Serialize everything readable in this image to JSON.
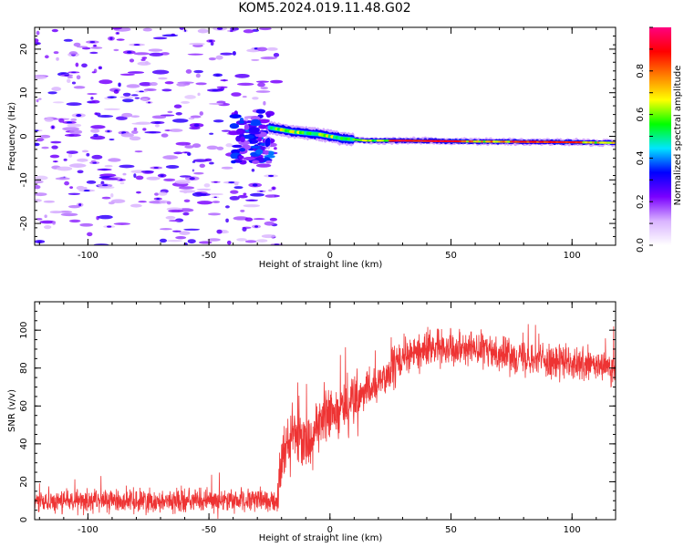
{
  "title": "KOM5.2024.019.11.48.G02",
  "chart_data": [
    {
      "type": "heatmap",
      "xlabel": "Height of straight line (km)",
      "ylabel": "Frequency (Hz)",
      "xlim": [
        -122,
        118
      ],
      "ylim": [
        -25,
        25
      ],
      "x_ticks": [
        -100,
        -50,
        0,
        50,
        100
      ],
      "y_ticks": [
        -20,
        -10,
        0,
        10,
        20
      ],
      "grid": false,
      "colorbar": {
        "label": "Normalized spectral amplitude",
        "range": [
          0,
          1
        ],
        "ticks": [
          0.0,
          0.2,
          0.4,
          0.6,
          0.8
        ],
        "colormap": [
          "#ffffff",
          "#d9b3ff",
          "#7a00ff",
          "#0000ff",
          "#00e5ff",
          "#00ff00",
          "#ffff00",
          "#ff8000",
          "#ff0000",
          "#ff0080"
        ]
      },
      "trace": {
        "description_points_x": [
          -25,
          -15,
          -5,
          5,
          15,
          30,
          60,
          90,
          118
        ],
        "description_points_freq": [
          2,
          1,
          0.5,
          -0.5,
          -1,
          -1,
          -1.2,
          -1.3,
          -1.5
        ]
      }
    },
    {
      "type": "line",
      "xlabel": "Height of straight line (km)",
      "ylabel": "SNR (v/v)",
      "xlim": [
        -122,
        118
      ],
      "ylim": [
        0,
        115
      ],
      "x_ticks": [
        -100,
        -50,
        0,
        50,
        100
      ],
      "y_ticks": [
        0,
        20,
        40,
        60,
        80,
        100
      ],
      "grid": false,
      "series": [
        {
          "color": "#ee3333",
          "envelope_x": [
            -122,
            -100,
            -50,
            -22,
            -20,
            -15,
            -10,
            -5,
            0,
            5,
            10,
            20,
            30,
            40,
            50,
            60,
            70,
            80,
            90,
            100,
            110,
            118
          ],
          "envelope_mean": [
            10,
            10,
            10,
            10,
            30,
            45,
            40,
            50,
            55,
            60,
            62,
            72,
            85,
            90,
            92,
            90,
            88,
            86,
            84,
            82,
            81,
            80
          ],
          "noise_amplitude": 7
        }
      ]
    }
  ]
}
